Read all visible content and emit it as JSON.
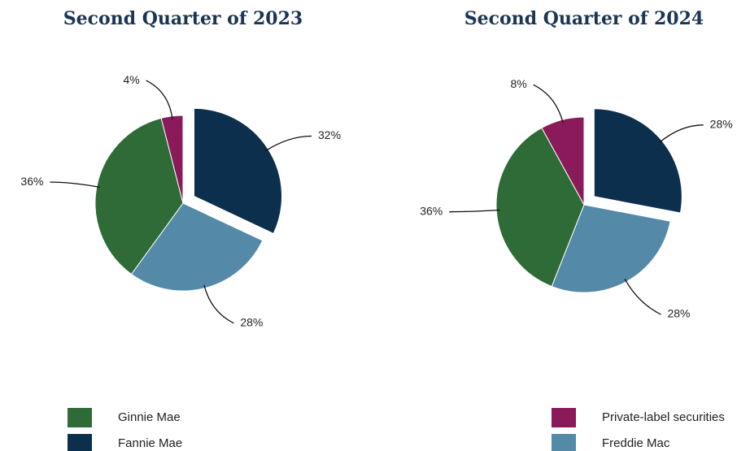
{
  "chart_data": [
    {
      "type": "pie",
      "title": "Second Quarter of 2023",
      "categories": [
        "Fannie Mae",
        "Freddie Mac",
        "Ginnie Mae",
        "Private-label securities"
      ],
      "values": [
        32,
        28,
        36,
        4
      ],
      "value_labels": [
        "32%",
        "28%",
        "36%",
        "4%"
      ],
      "colors": [
        "#0b2f4c",
        "#5589a8",
        "#2e6b37",
        "#8b1a5a"
      ],
      "exploded": [
        0
      ]
    },
    {
      "type": "pie",
      "title": "Second Quarter of 2024",
      "categories": [
        "Fannie Mae",
        "Freddie Mac",
        "Ginnie Mae",
        "Private-label securities"
      ],
      "values": [
        28,
        28,
        36,
        8
      ],
      "value_labels": [
        "28%",
        "28%",
        "36%",
        "8%"
      ],
      "colors": [
        "#0b2f4c",
        "#5589a8",
        "#2e6b37",
        "#8b1a5a"
      ],
      "exploded": [
        0
      ]
    }
  ]
}
